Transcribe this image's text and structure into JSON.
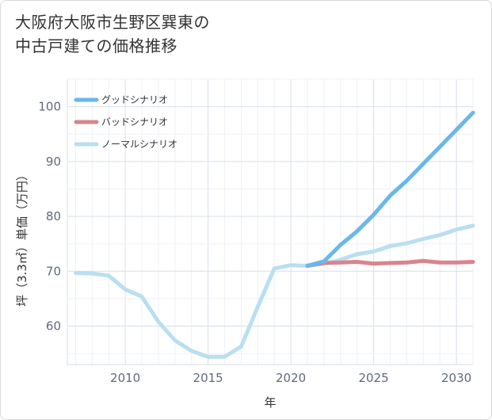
{
  "title_lines": [
    "大阪府大阪市生野区巽東の",
    "中古戸建ての価格推移"
  ],
  "chart_data": {
    "type": "line",
    "xlabel": "年",
    "ylabel": "坪（3.3㎡）単価（万円）",
    "xlim": [
      2006.5,
      2031
    ],
    "ylim": [
      53,
      105
    ],
    "x_ticks": [
      2010,
      2015,
      2020,
      2025,
      2030
    ],
    "y_ticks": [
      60,
      70,
      80,
      90,
      100
    ],
    "grid": true,
    "legend_position": "top-left",
    "series": [
      {
        "name": "グッドシナリオ",
        "color": "#6ab7eb",
        "x": [
          2021,
          2022,
          2023,
          2024,
          2025,
          2026,
          2027,
          2028,
          2029,
          2030,
          2031
        ],
        "values": [
          71.0,
          71.8,
          74.8,
          77.3,
          80.3,
          83.8,
          86.5,
          89.6,
          92.7,
          95.8,
          98.9
        ]
      },
      {
        "name": "バッドシナリオ",
        "color": "#d9848e",
        "x": [
          2021,
          2022,
          2023,
          2024,
          2025,
          2026,
          2027,
          2028,
          2029,
          2030,
          2031
        ],
        "values": [
          71.0,
          71.5,
          71.6,
          71.7,
          71.4,
          71.5,
          71.6,
          71.9,
          71.6,
          71.6,
          71.7
        ]
      },
      {
        "name": "ノーマルシナリオ",
        "color": "#b9dff0",
        "x": [
          2007,
          2008,
          2009,
          2010,
          2011,
          2012,
          2013,
          2014,
          2015,
          2016,
          2017,
          2018,
          2019,
          2020,
          2021,
          2022,
          2023,
          2024,
          2025,
          2026,
          2027,
          2028,
          2029,
          2030,
          2031
        ],
        "values": [
          69.7,
          69.6,
          69.2,
          66.7,
          65.4,
          60.8,
          57.4,
          55.5,
          54.4,
          54.4,
          56.3,
          63.5,
          70.5,
          71.1,
          71.0,
          71.4,
          72.1,
          73.1,
          73.6,
          74.6,
          75.1,
          75.9,
          76.6,
          77.6,
          78.3
        ]
      }
    ]
  }
}
